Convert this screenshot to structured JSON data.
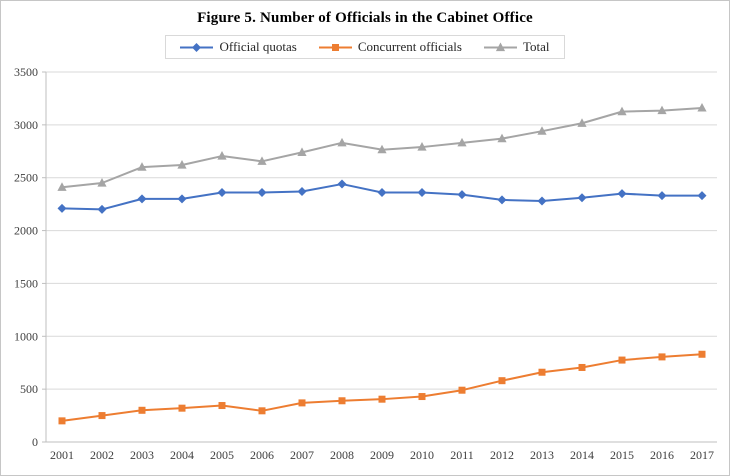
{
  "figure": {
    "title": "Figure 5. Number of Officials in the Cabinet Office"
  },
  "chart_data": {
    "type": "line",
    "title": "Figure 5. Number of Officials in the Cabinet Office",
    "xlabel": "",
    "ylabel": "",
    "categories": [
      "2001",
      "2002",
      "2003",
      "2004",
      "2005",
      "2006",
      "2007",
      "2008",
      "2009",
      "2010",
      "2011",
      "2012",
      "2013",
      "2014",
      "2015",
      "2016",
      "2017"
    ],
    "series": [
      {
        "name": "Official quotas",
        "marker": "diamond",
        "color": "#4472C4",
        "values": [
          2210,
          2200,
          2300,
          2300,
          2360,
          2360,
          2370,
          2440,
          2360,
          2360,
          2340,
          2290,
          2280,
          2310,
          2350,
          2330,
          2330
        ]
      },
      {
        "name": "Concurrent officials",
        "marker": "square",
        "color": "#ED7D31",
        "values": [
          200,
          250,
          300,
          320,
          345,
          295,
          370,
          390,
          405,
          430,
          490,
          580,
          660,
          705,
          775,
          805,
          830
        ]
      },
      {
        "name": "Total",
        "marker": "triangle",
        "color": "#A5A5A5",
        "values": [
          2410,
          2450,
          2600,
          2620,
          2705,
          2655,
          2740,
          2830,
          2765,
          2790,
          2830,
          2870,
          2940,
          3015,
          3125,
          3135,
          3160
        ]
      }
    ],
    "ylim": [
      0,
      3500
    ],
    "yticks": [
      0,
      500,
      1000,
      1500,
      2000,
      2500,
      3000,
      3500
    ],
    "grid": true,
    "legend_position": "top",
    "colors": {
      "grid": "#d9d9d9",
      "axis": "#bfbfbf",
      "tick_label": "#404040"
    }
  }
}
